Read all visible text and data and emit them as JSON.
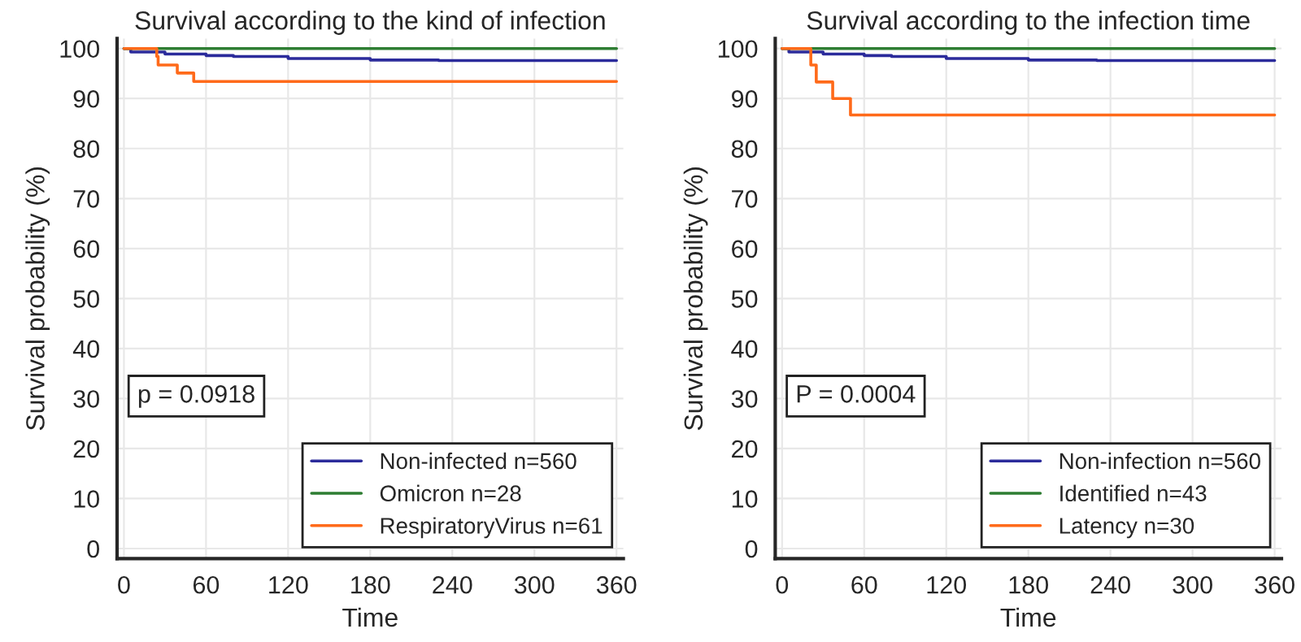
{
  "chart_data": [
    {
      "type": "step",
      "title": "Survival according to the kind of infection",
      "xlabel": "Time",
      "ylabel": "Survival probability (%)",
      "xlim": [
        -5,
        365
      ],
      "xticks": [
        0,
        60,
        120,
        180,
        240,
        300,
        360
      ],
      "ylim": [
        -2,
        102
      ],
      "yticks": [
        0,
        10,
        20,
        30,
        40,
        50,
        60,
        70,
        80,
        90,
        100
      ],
      "grid": true,
      "legend": "bottom right",
      "annotations": [
        "p = 0.0918"
      ],
      "series": [
        {
          "name": "Non-infected n=560",
          "color": "#2b2b9b",
          "x": [
            0,
            5,
            30,
            60,
            80,
            120,
            180,
            230,
            360
          ],
          "values": [
            100,
            99.3,
            98.9,
            98.6,
            98.4,
            98.0,
            97.7,
            97.6,
            97.6
          ]
        },
        {
          "name": "Omicron n=28",
          "color": "#2e7d32",
          "x": [
            0,
            360
          ],
          "values": [
            100,
            100
          ]
        },
        {
          "name": "RespiratoryVirus n=61",
          "color": "#ff6a1a",
          "x": [
            0,
            24,
            25,
            39,
            51,
            360
          ],
          "values": [
            100,
            98.4,
            96.7,
            95.1,
            93.4,
            93.4
          ]
        }
      ]
    },
    {
      "type": "step",
      "title": "Survival according to the infection time",
      "xlabel": "Time",
      "ylabel": "Survival probability (%)",
      "xlim": [
        -5,
        365
      ],
      "xticks": [
        0,
        60,
        120,
        180,
        240,
        300,
        360
      ],
      "ylim": [
        -2,
        102
      ],
      "yticks": [
        0,
        10,
        20,
        30,
        40,
        50,
        60,
        70,
        80,
        90,
        100
      ],
      "grid": true,
      "legend": "bottom right",
      "annotations": [
        "P = 0.0004"
      ],
      "series": [
        {
          "name": "Non-infection n=560",
          "color": "#2b2b9b",
          "x": [
            0,
            5,
            30,
            60,
            80,
            120,
            180,
            230,
            360
          ],
          "values": [
            100,
            99.3,
            98.9,
            98.6,
            98.4,
            98.0,
            97.7,
            97.6,
            97.6
          ]
        },
        {
          "name": "Identified n=43",
          "color": "#2e7d32",
          "x": [
            0,
            360
          ],
          "values": [
            100,
            100
          ]
        },
        {
          "name": "Latency n=30",
          "color": "#ff6a1a",
          "x": [
            0,
            21,
            25,
            37,
            50,
            360
          ],
          "values": [
            100,
            96.7,
            93.3,
            90.0,
            86.7,
            86.7
          ]
        }
      ]
    }
  ]
}
